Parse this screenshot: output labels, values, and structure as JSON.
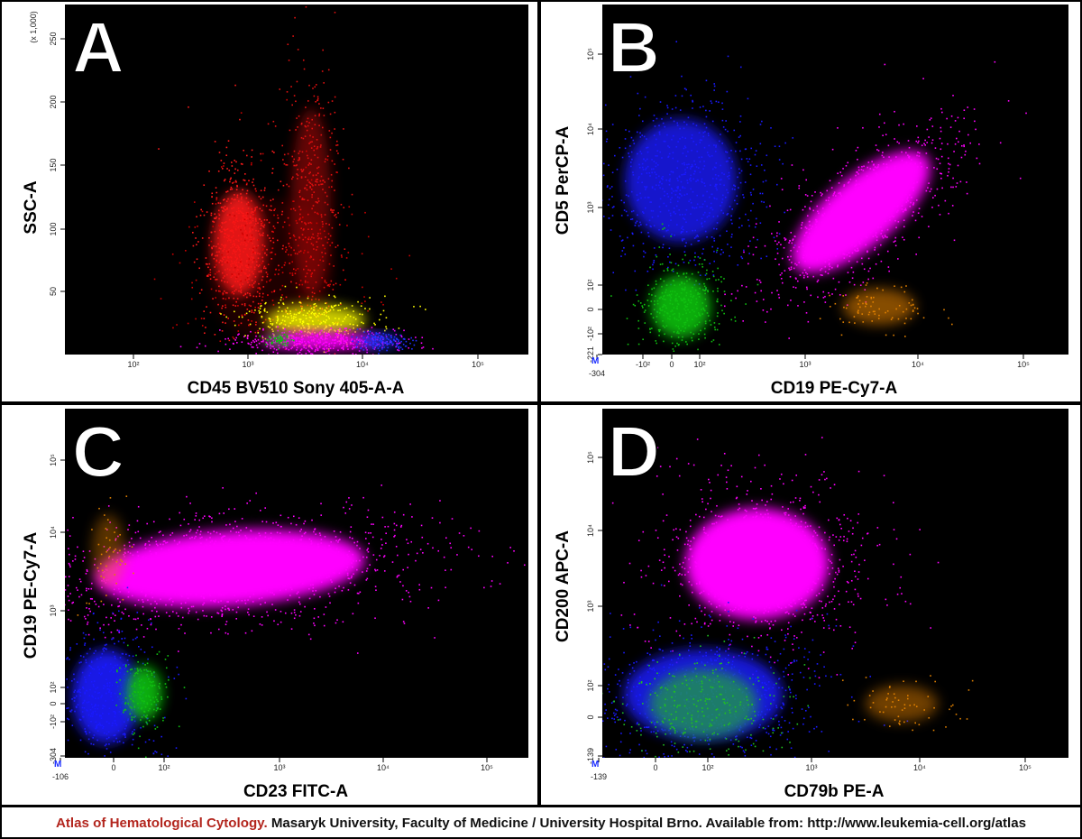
{
  "panels": [
    {
      "letter": "A",
      "x_label": "CD45 BV510 Sony 405-A-A",
      "y_label": "SSC-A",
      "y_scale_note": "(x 1,000)",
      "x_ticks": [
        "10²",
        "10³",
        "10⁴",
        "10⁵"
      ],
      "y_ticks": [
        "50",
        "100",
        "150",
        "200",
        "250"
      ]
    },
    {
      "letter": "B",
      "x_label": "CD19 PE-Cy7-A",
      "y_label": "CD5 PerCP-A",
      "corner_marker": "M",
      "x_ticks": [
        "-304",
        "-10²",
        "0",
        "10²",
        "10³",
        "10⁴",
        "10⁵"
      ],
      "y_ticks": [
        "10⁵",
        "10⁴",
        "10³",
        "10²",
        "0",
        "-10²",
        "-221"
      ]
    },
    {
      "letter": "C",
      "x_label": "CD23 FITC-A",
      "y_label": "CD19 PE-Cy7-A",
      "corner_marker": "M",
      "x_ticks": [
        "-106",
        "0",
        "10²",
        "10³",
        "10⁴",
        "10⁵"
      ],
      "y_ticks": [
        "10⁵",
        "10⁴",
        "10³",
        "10²",
        "0",
        "-10²",
        "-304"
      ]
    },
    {
      "letter": "D",
      "x_label": "CD79b PE-A",
      "y_label": "CD200 APC-A",
      "corner_marker": "M",
      "x_ticks": [
        "-139",
        "0",
        "10²",
        "10³",
        "10⁴",
        "10⁵"
      ],
      "y_ticks": [
        "10⁵",
        "10⁴",
        "10³",
        "10²",
        "0",
        "-139"
      ]
    }
  ],
  "caption": {
    "source": "Atlas of Hematological Cytology.",
    "text": " Masaryk University, Faculty of Medicine / University Hospital Brno. Available from: http://www.leukemia-cell.org/atlas"
  }
}
